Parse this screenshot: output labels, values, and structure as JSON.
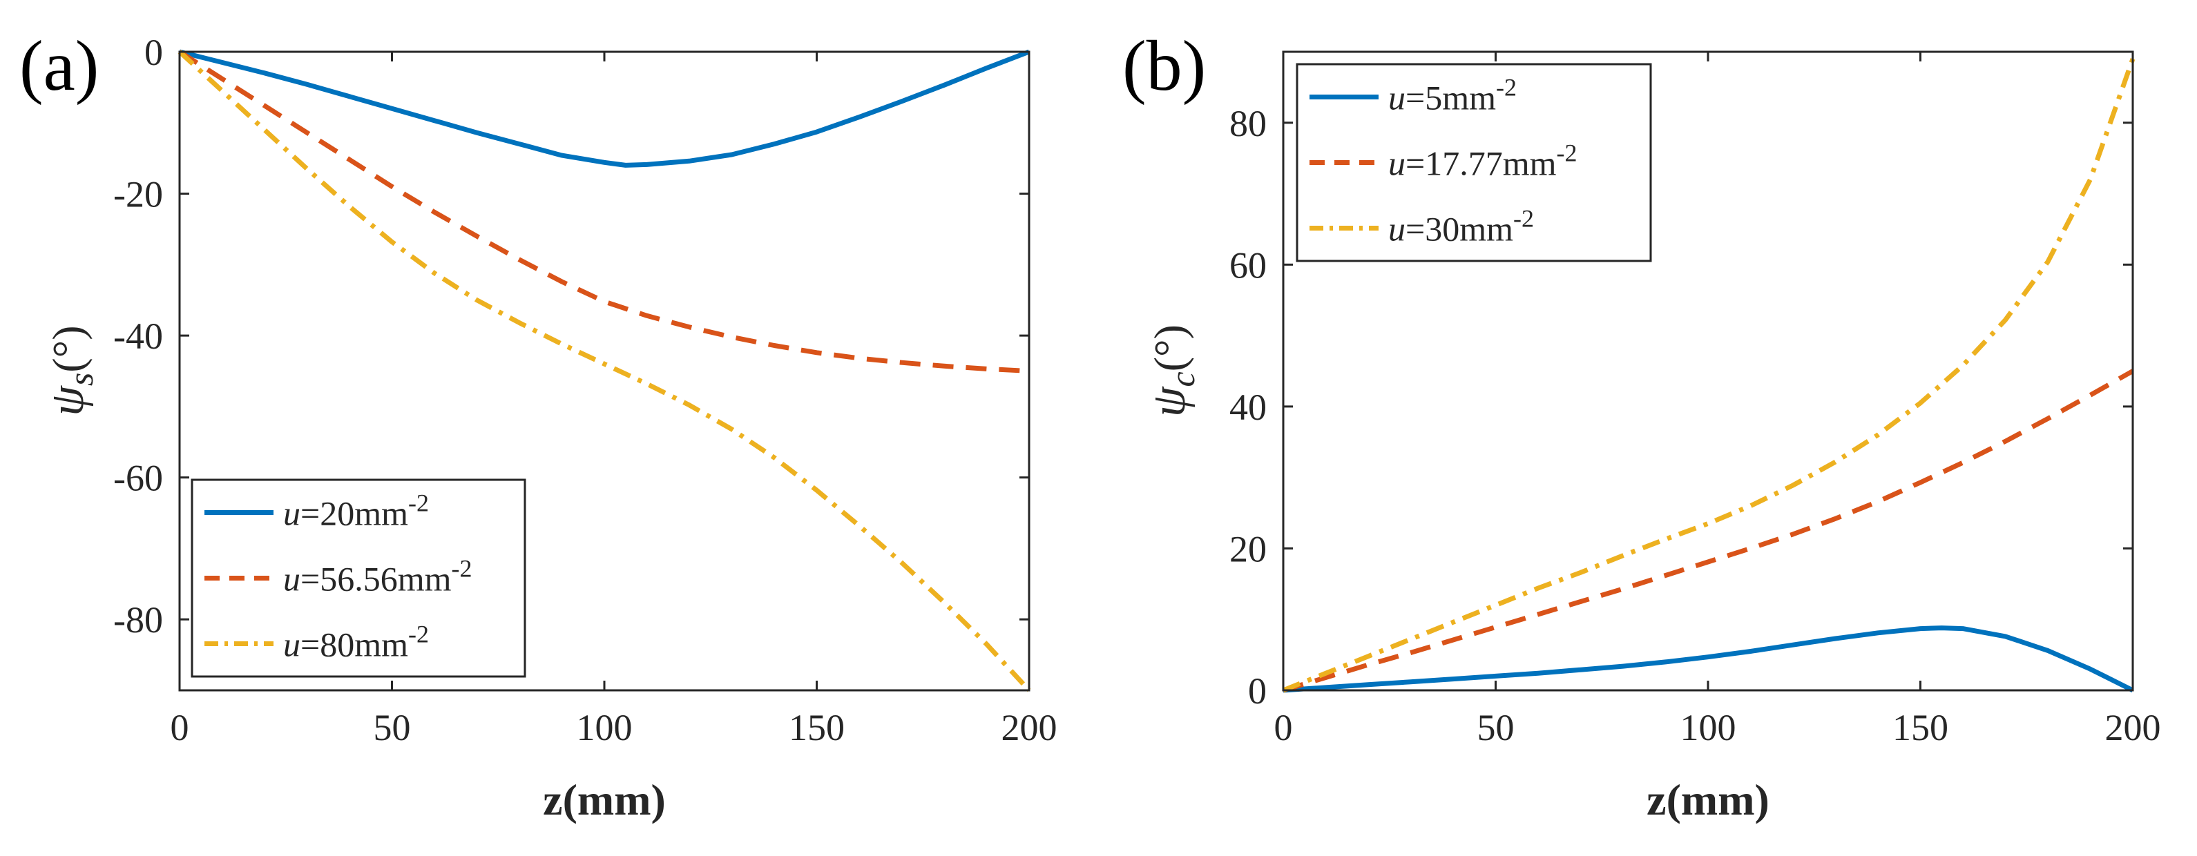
{
  "chart_data": [
    {
      "type": "line",
      "panel_label": "(a)",
      "xlabel": "z(mm)",
      "ylabel": {
        "symbol": "ψ",
        "subscript": "s",
        "suffix": "(°)"
      },
      "xlim": [
        0,
        200
      ],
      "ylim": [
        -90,
        0
      ],
      "xticks": [
        "0",
        "50",
        "100",
        "150",
        "200"
      ],
      "yticks": [
        "0",
        "-20",
        "-40",
        "-60",
        "-80"
      ],
      "legend_position": "bottom-left",
      "series": [
        {
          "name": "u=20mm-2",
          "legend": {
            "var": "u",
            "eq": "=20mm",
            "sup": "-2"
          },
          "color": "#0072BD",
          "style": "solid",
          "x": [
            0,
            10,
            20,
            30,
            40,
            50,
            60,
            70,
            80,
            90,
            100,
            105,
            110,
            120,
            130,
            140,
            150,
            160,
            170,
            180,
            190,
            200
          ],
          "y": [
            0,
            -1.5,
            -3.0,
            -4.6,
            -6.3,
            -8.0,
            -9.7,
            -11.4,
            -13.0,
            -14.6,
            -15.6,
            -16.0,
            -15.9,
            -15.4,
            -14.5,
            -13.0,
            -11.3,
            -9.2,
            -7.0,
            -4.7,
            -2.3,
            0
          ]
        },
        {
          "name": "u=56.56mm-2",
          "legend": {
            "var": "u",
            "eq": "=56.56mm",
            "sup": "-2"
          },
          "color": "#D95319",
          "style": "dashed",
          "x": [
            0,
            10,
            20,
            30,
            40,
            50,
            60,
            70,
            80,
            90,
            100,
            110,
            120,
            130,
            140,
            150,
            160,
            170,
            180,
            190,
            200
          ],
          "y": [
            0,
            -3.8,
            -7.6,
            -11.4,
            -15.2,
            -19.0,
            -22.6,
            -26.0,
            -29.3,
            -32.4,
            -35.2,
            -37.2,
            -38.8,
            -40.2,
            -41.4,
            -42.4,
            -43.2,
            -43.8,
            -44.3,
            -44.7,
            -45.0
          ]
        },
        {
          "name": "u=80mm-2",
          "legend": {
            "var": "u",
            "eq": "=80mm",
            "sup": "-2"
          },
          "color": "#EDB120",
          "style": "dashdot",
          "x": [
            0,
            10,
            20,
            30,
            40,
            50,
            60,
            70,
            80,
            90,
            100,
            110,
            120,
            130,
            140,
            150,
            160,
            170,
            180,
            190,
            200
          ],
          "y": [
            0,
            -5.5,
            -11.0,
            -16.5,
            -21.8,
            -26.8,
            -31.2,
            -35.0,
            -38.2,
            -41.2,
            -44.0,
            -46.8,
            -49.8,
            -53.2,
            -57.2,
            -61.8,
            -66.8,
            -72.0,
            -77.6,
            -83.5,
            -90.0
          ]
        }
      ]
    },
    {
      "type": "line",
      "panel_label": "(b)",
      "xlabel": "z(mm)",
      "ylabel": {
        "symbol": "ψ",
        "subscript": "c",
        "suffix": "(°)"
      },
      "xlim": [
        0,
        200
      ],
      "ylim": [
        0,
        90
      ],
      "xticks": [
        "0",
        "50",
        "100",
        "150",
        "200"
      ],
      "yticks": [
        "0",
        "20",
        "40",
        "60",
        "80"
      ],
      "legend_position": "top-left",
      "series": [
        {
          "name": "u=5mm-2",
          "legend": {
            "var": "u",
            "eq": "=5mm",
            "sup": "-2"
          },
          "color": "#0072BD",
          "style": "solid",
          "x": [
            0,
            10,
            20,
            30,
            40,
            50,
            60,
            70,
            80,
            90,
            100,
            110,
            120,
            130,
            140,
            150,
            155,
            160,
            170,
            180,
            190,
            200
          ],
          "y": [
            0,
            0.4,
            0.8,
            1.2,
            1.6,
            2.0,
            2.4,
            2.9,
            3.4,
            4.0,
            4.7,
            5.5,
            6.4,
            7.3,
            8.1,
            8.7,
            8.8,
            8.7,
            7.6,
            5.6,
            3.0,
            0
          ]
        },
        {
          "name": "u=17.77mm-2",
          "legend": {
            "var": "u",
            "eq": "=17.77mm",
            "sup": "-2"
          },
          "color": "#D95319",
          "style": "dashed",
          "x": [
            0,
            10,
            20,
            30,
            40,
            50,
            60,
            70,
            80,
            90,
            100,
            110,
            120,
            130,
            140,
            150,
            160,
            170,
            180,
            190,
            200
          ],
          "y": [
            0,
            1.8,
            3.6,
            5.3,
            7.1,
            8.9,
            10.7,
            12.5,
            14.3,
            16.2,
            18.1,
            20.0,
            22.0,
            24.2,
            26.6,
            29.3,
            32.1,
            35.1,
            38.3,
            41.6,
            45.0
          ]
        },
        {
          "name": "u=30mm-2",
          "legend": {
            "var": "u",
            "eq": "=30mm",
            "sup": "-2"
          },
          "color": "#EDB120",
          "style": "dashdot",
          "x": [
            0,
            10,
            20,
            30,
            40,
            50,
            60,
            70,
            80,
            90,
            100,
            110,
            120,
            130,
            140,
            150,
            160,
            170,
            180,
            190,
            200
          ],
          "y": [
            0,
            2.4,
            4.8,
            7.2,
            9.6,
            12.0,
            14.4,
            16.6,
            19.0,
            21.3,
            23.5,
            26.0,
            28.9,
            32.2,
            36.0,
            40.5,
            45.8,
            52.2,
            60.4,
            72.0,
            89.0
          ]
        }
      ]
    }
  ]
}
